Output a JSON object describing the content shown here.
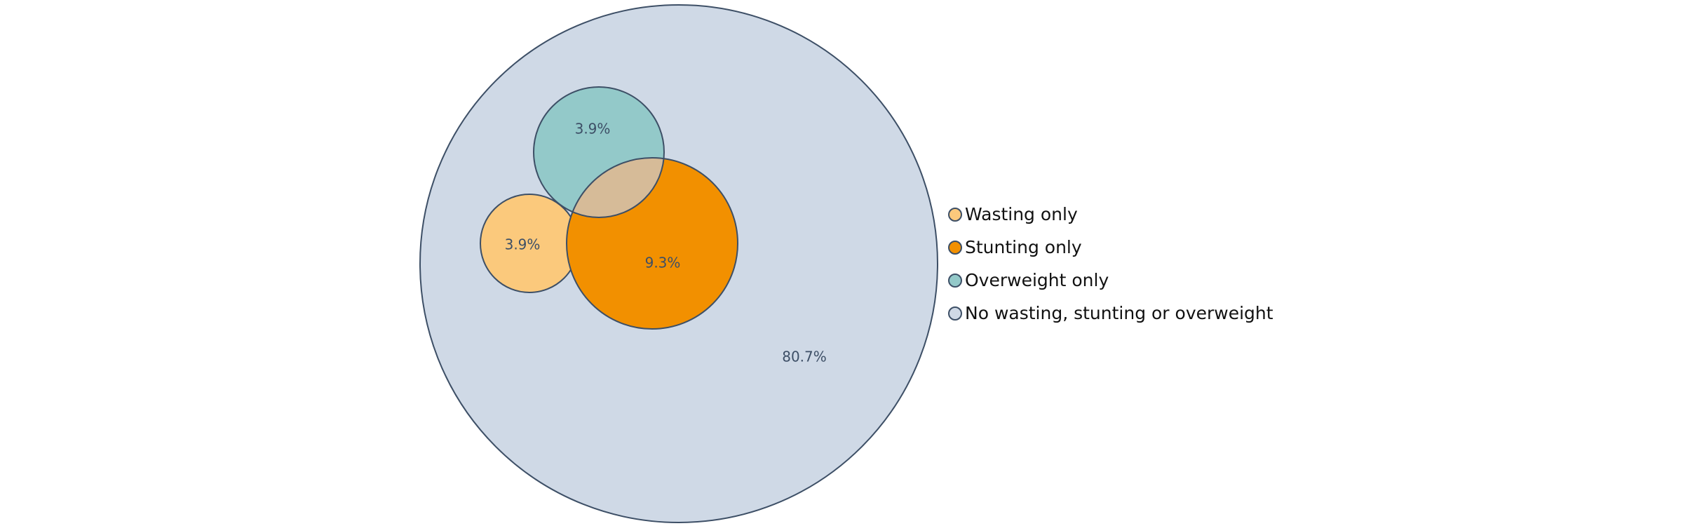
{
  "chart_data": {
    "type": "venn",
    "sets": [
      {
        "key": "wasting",
        "name": "Wasting only",
        "value": 3.9,
        "label": "3.9%",
        "color": "#fbc97c"
      },
      {
        "key": "stunting",
        "name": "Stunting only",
        "value": 9.3,
        "label": "9.3%",
        "color": "#f29000"
      },
      {
        "key": "overweight",
        "name": "Overweight only",
        "value": 3.9,
        "label": "3.9%",
        "color": "#93c9c9"
      },
      {
        "key": "none",
        "name": "No wasting, stunting or overweight",
        "value": 80.7,
        "label": "80.7%",
        "color": "#cfd9e6"
      }
    ],
    "overlap_colors": {
      "stunting_overweight": "#d6bb98"
    },
    "outline_color": "#3d4f66",
    "label_color": "#3d4f66",
    "legend": {
      "placement": "right",
      "items": [
        {
          "label": "Wasting only",
          "color": "#fbc97c"
        },
        {
          "label": "Stunting only",
          "color": "#f29000"
        },
        {
          "label": "Overweight only",
          "color": "#93c9c9"
        },
        {
          "label": "No wasting, stunting or overweight",
          "color": "#cfd9e6"
        }
      ]
    }
  }
}
